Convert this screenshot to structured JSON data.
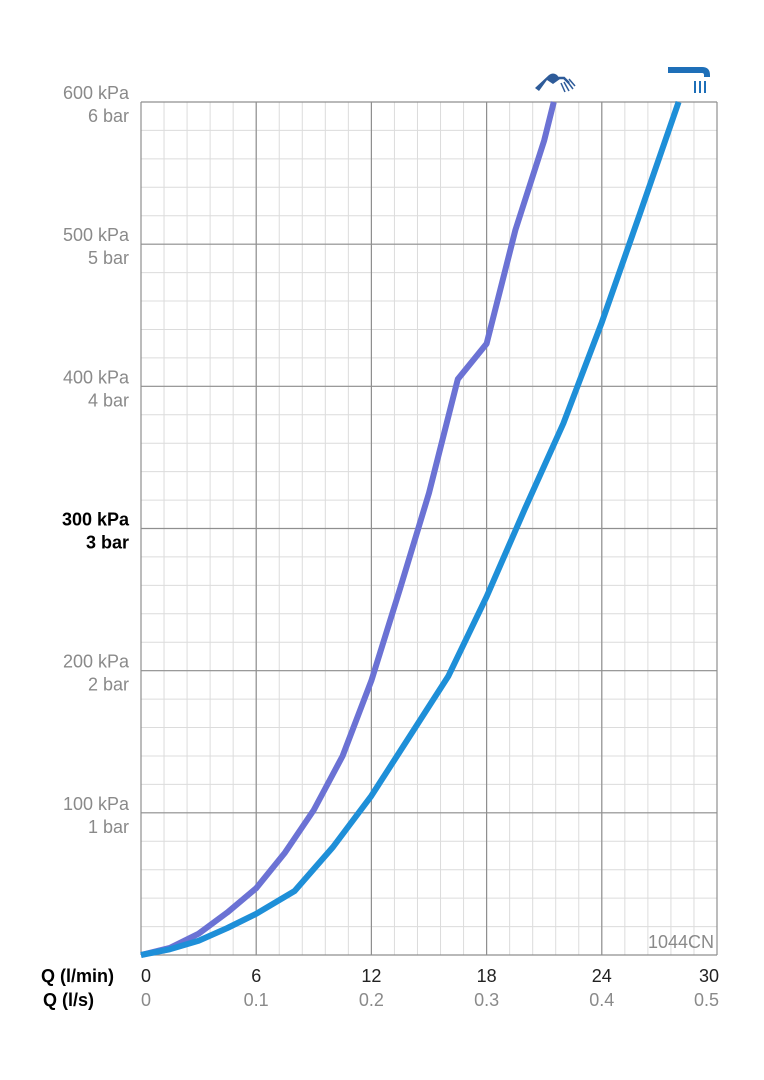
{
  "chart_data": {
    "type": "line",
    "code_label": "1044CN",
    "x_primary": {
      "label": "Q (l/min)",
      "ticks": [
        "0",
        "6",
        "12",
        "18",
        "24",
        "30"
      ],
      "range": [
        0,
        30
      ]
    },
    "x_secondary": {
      "label": "Q (l/s)",
      "ticks": [
        "0",
        "0.1",
        "0.2",
        "0.3",
        "0.4",
        "0.5"
      ]
    },
    "y": {
      "range": [
        0,
        600
      ],
      "unit": "kPa",
      "ticks": [
        {
          "value": 100,
          "kpa": "100 kPa",
          "bar": "1 bar"
        },
        {
          "value": 200,
          "kpa": "200 kPa",
          "bar": "2 bar"
        },
        {
          "value": 300,
          "kpa": "300 kPa",
          "bar": "3 bar",
          "bold": true
        },
        {
          "value": 400,
          "kpa": "400 kPa",
          "bar": "4 bar"
        },
        {
          "value": 500,
          "kpa": "500 kPa",
          "bar": "5 bar"
        },
        {
          "value": 600,
          "kpa": "600 kPa",
          "bar": "6 bar"
        }
      ]
    },
    "grid": true,
    "series": [
      {
        "icon": "hand-shower-icon",
        "color": "#6b72d4",
        "points": [
          [
            0,
            0
          ],
          [
            1.5,
            5
          ],
          [
            3,
            15
          ],
          [
            4.5,
            30
          ],
          [
            6,
            47
          ],
          [
            7.5,
            72
          ],
          [
            9,
            102
          ],
          [
            10.5,
            140
          ],
          [
            12,
            193
          ],
          [
            13.5,
            258
          ],
          [
            15,
            325
          ],
          [
            16.5,
            405
          ],
          [
            18,
            430
          ],
          [
            19.5,
            510
          ],
          [
            21,
            573
          ],
          [
            21.5,
            600
          ]
        ]
      },
      {
        "icon": "overhead-shower-icon",
        "color": "#1e8fd8",
        "points": [
          [
            0,
            0
          ],
          [
            1.5,
            4
          ],
          [
            3,
            10
          ],
          [
            4.5,
            19
          ],
          [
            6,
            29
          ],
          [
            8,
            45
          ],
          [
            10,
            76
          ],
          [
            12,
            112
          ],
          [
            14,
            154
          ],
          [
            16,
            196
          ],
          [
            18,
            252
          ],
          [
            20,
            314
          ],
          [
            22,
            374
          ],
          [
            24,
            445
          ],
          [
            26,
            522
          ],
          [
            28,
            600
          ]
        ]
      }
    ]
  }
}
